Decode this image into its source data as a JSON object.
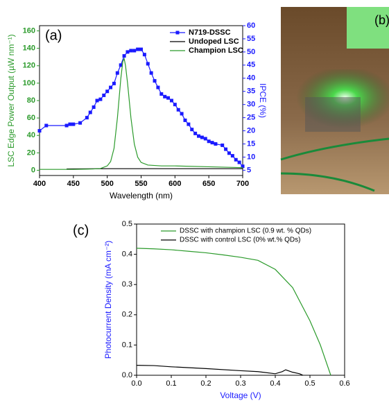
{
  "chart_data": [
    {
      "type": "line",
      "panel_label": "(a)",
      "xlabel": "Wavelength (nm)",
      "ylabel": "LSC Edge Power Output (µW nm⁻¹)",
      "y2label": "IPCE (%)",
      "xlim": [
        400,
        700
      ],
      "xticks": [
        400,
        450,
        500,
        550,
        600,
        650,
        700
      ],
      "ylim": [
        -6,
        166
      ],
      "yticks": [
        0,
        20,
        40,
        60,
        80,
        100,
        120,
        140,
        160
      ],
      "y2lim": [
        3,
        60
      ],
      "y2ticks": [
        5,
        10,
        15,
        20,
        25,
        30,
        35,
        40,
        45,
        50,
        55,
        60
      ],
      "legend": "top-right",
      "series": [
        {
          "name": "N719-DSSC",
          "color": "#1a1aff",
          "axis": "y2",
          "marker": "square",
          "x": [
            400,
            410,
            440,
            445,
            450,
            460,
            470,
            475,
            480,
            485,
            490,
            495,
            500,
            505,
            510,
            515,
            520,
            525,
            530,
            535,
            540,
            545,
            550,
            555,
            560,
            565,
            570,
            575,
            580,
            585,
            590,
            595,
            600,
            605,
            610,
            615,
            620,
            625,
            630,
            635,
            640,
            645,
            650,
            655,
            660,
            670,
            675,
            680,
            685,
            690,
            695,
            700
          ],
          "values": [
            20,
            22,
            22,
            22.5,
            22.5,
            23,
            25,
            27,
            29,
            31.5,
            32,
            33.5,
            35,
            36.5,
            38,
            42,
            45,
            48.5,
            50,
            50.5,
            50.5,
            51,
            51,
            49,
            45.5,
            42,
            39,
            36.5,
            34,
            33,
            32.5,
            31.5,
            30,
            28,
            26.5,
            24,
            22.5,
            20.5,
            19,
            18,
            17.5,
            17,
            16,
            15.5,
            15,
            14.5,
            13,
            11.5,
            10.5,
            9,
            8,
            6.5
          ]
        },
        {
          "name": "Undoped LSC",
          "color": "#000000",
          "x": [
            440,
            500,
            550,
            600,
            650,
            700
          ],
          "values": [
            1.5,
            1.8,
            1.8,
            1.8,
            1.8,
            1.8
          ]
        },
        {
          "name": "Champion LSC",
          "color": "#2a9a2a",
          "x": [
            400,
            450,
            480,
            490,
            500,
            505,
            510,
            515,
            520,
            523,
            525,
            527,
            530,
            535,
            540,
            545,
            550,
            560,
            580,
            600,
            650,
            700
          ],
          "values": [
            1,
            1,
            1.5,
            2,
            5,
            10,
            25,
            60,
            105,
            125,
            128,
            120,
            100,
            60,
            30,
            15,
            9,
            6,
            5,
            5,
            4,
            3
          ]
        }
      ]
    },
    {
      "type": "line",
      "panel_label": "(c)",
      "xlabel": "Voltage (V)",
      "ylabel": "Photocurrent Density (mA cm⁻²)",
      "xlim": [
        0,
        0.6
      ],
      "xticks": [
        {
          "value": 0,
          "label": "0.0"
        },
        0.1,
        0.2,
        0.3,
        0.4,
        0.5,
        0.6
      ],
      "ylim": [
        0,
        0.5
      ],
      "yticks": [
        {
          "value": 0,
          "label": "0.0"
        },
        0.1,
        0.2,
        0.3,
        0.4,
        0.5
      ],
      "legend": "top-right",
      "series": [
        {
          "name": "DSSC with champion LSC (0.9 wt. % QDs)",
          "color": "#2a9a2a",
          "x": [
            0,
            0.05,
            0.1,
            0.15,
            0.2,
            0.25,
            0.3,
            0.35,
            0.4,
            0.45,
            0.5,
            0.53,
            0.56
          ],
          "values": [
            0.42,
            0.418,
            0.415,
            0.41,
            0.405,
            0.398,
            0.39,
            0.38,
            0.35,
            0.29,
            0.18,
            0.1,
            0
          ]
        },
        {
          "name": "DSSC with control LSC (0% wt.% QDs)",
          "color": "#000000",
          "x": [
            0,
            0.05,
            0.1,
            0.2,
            0.3,
            0.35,
            0.4,
            0.42,
            0.43,
            0.45,
            0.47,
            0.48
          ],
          "values": [
            0.033,
            0.032,
            0.028,
            0.022,
            0.015,
            0.012,
            0.005,
            0.012,
            0.018,
            0.01,
            0.005,
            0
          ]
        }
      ]
    }
  ],
  "photo_panel": {
    "label": "(b)"
  }
}
